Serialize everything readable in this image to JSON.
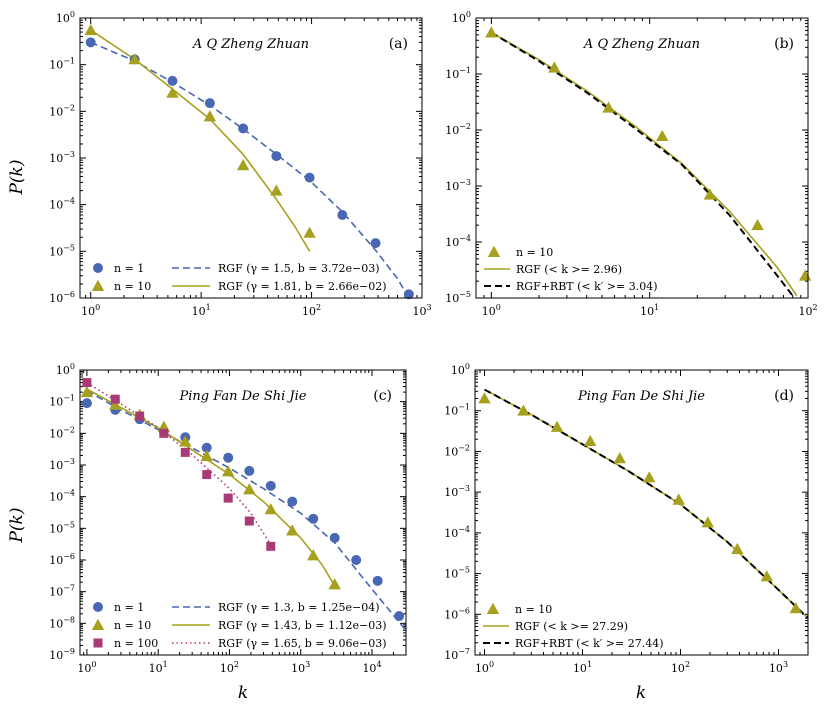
{
  "colors": {
    "blue": "#4a67b3",
    "olive": "#a6a01e",
    "magenta": "#a93a75"
  },
  "axis_labels": {
    "y": "P(k)",
    "x": "k"
  },
  "chart_data": [
    {
      "type": "scatter",
      "scale": "log-log",
      "label": "(a)",
      "title": "A Q Zheng Zhuan",
      "xlim": [
        0.8,
        1000
      ],
      "ylim": [
        1e-06,
        1
      ],
      "legend_layout": "two-columns",
      "xticks": [
        0,
        1,
        2,
        3
      ],
      "yticks": [
        0,
        -1,
        -2,
        -3,
        -4,
        -5,
        -6
      ],
      "series": [
        {
          "name": "n = 1",
          "marker": "circle",
          "color": "#4a67b3",
          "x": [
            1,
            2.5,
            5.5,
            12,
            24,
            48,
            96,
            190,
            380,
            760
          ],
          "y": [
            0.3,
            0.13,
            0.045,
            0.015,
            0.0043,
            0.0011,
            0.00038,
            6e-05,
            1.5e-05,
            1.2e-06
          ]
        },
        {
          "name": "n = 10",
          "marker": "triangle",
          "color": "#a6a01e",
          "x": [
            1,
            2.5,
            5.5,
            12,
            24,
            48,
            96
          ],
          "y": [
            0.55,
            0.13,
            0.025,
            0.0078,
            0.0007,
            0.0002,
            2.5e-05
          ]
        }
      ],
      "fits": [
        {
          "name": "RGF",
          "params": "(γ = 1.5, b = 3.72e−03)",
          "color": "#4a67b3",
          "style": "dashed",
          "x": [
            1,
            2.5,
            5.5,
            12,
            24,
            48,
            96,
            190,
            380,
            600,
            800
          ],
          "y": [
            0.3,
            0.12,
            0.042,
            0.0135,
            0.0042,
            0.0012,
            0.00033,
            7e-05,
            1.05e-05,
            2.6e-06,
            8e-07
          ]
        },
        {
          "name": "RGF",
          "params": "(γ = 1.81, b = 2.66e−02)",
          "color": "#a6a01e",
          "style": "solid",
          "x": [
            1,
            2.5,
            5.5,
            12,
            24,
            48,
            70,
            96
          ],
          "y": [
            0.55,
            0.13,
            0.03,
            0.0068,
            0.0012,
            0.00013,
            3.5e-05,
            1e-05
          ]
        }
      ]
    },
    {
      "type": "scatter",
      "scale": "log-log",
      "label": "(b)",
      "title": "A Q Zheng Zhuan",
      "xlim": [
        0.8,
        100
      ],
      "ylim": [
        1e-05,
        1
      ],
      "legend_layout": "one-column",
      "xticks": [
        0,
        1,
        2
      ],
      "yticks": [
        0,
        -1,
        -2,
        -3,
        -4,
        -5
      ],
      "series": [
        {
          "name": "n = 10",
          "marker": "triangle",
          "color": "#a6a01e",
          "x": [
            1,
            2.5,
            5.5,
            12,
            24,
            48,
            96
          ],
          "y": [
            0.55,
            0.13,
            0.025,
            0.0078,
            0.0007,
            0.0002,
            2.5e-05
          ]
        }
      ],
      "fits": [
        {
          "name": "RGF",
          "params": "(< k >= 2.96)",
          "color": "#a6a01e",
          "style": "solid",
          "x": [
            1,
            2,
            4,
            8,
            16,
            32,
            64,
            85
          ],
          "y": [
            0.55,
            0.18,
            0.05,
            0.012,
            0.0025,
            0.00035,
            3.5e-05,
            1.1e-05
          ]
        },
        {
          "name": "RGF+RBT",
          "params": "(< k′ >= 3.04)",
          "color": "#000000",
          "style": "dashed",
          "x": [
            1,
            2,
            4,
            8,
            16,
            32,
            64,
            80
          ],
          "y": [
            0.55,
            0.17,
            0.047,
            0.011,
            0.0024,
            0.0003,
            2.5e-05,
            1.1e-05
          ]
        }
      ]
    },
    {
      "type": "scatter",
      "scale": "log-log",
      "label": "(c)",
      "title": "Ping Fan De Shi Jie",
      "xlim": [
        0.8,
        30000
      ],
      "ylim": [
        1e-09,
        1
      ],
      "legend_layout": "two-columns",
      "xticks": [
        0,
        1,
        2,
        3,
        4
      ],
      "yticks": [
        0,
        -1,
        -2,
        -3,
        -4,
        -5,
        -6,
        -7,
        -8,
        -9
      ],
      "series": [
        {
          "name": "n = 1",
          "marker": "circle",
          "color": "#4a67b3",
          "x": [
            1,
            2.5,
            5.5,
            12,
            24,
            48,
            96,
            190,
            380,
            760,
            1500,
            3000,
            6000,
            12000,
            24000
          ],
          "y": [
            0.09,
            0.055,
            0.028,
            0.012,
            0.0075,
            0.0035,
            0.0017,
            0.00065,
            0.00022,
            7e-05,
            2e-05,
            5e-06,
            1e-06,
            2.2e-07,
            1.7e-08
          ]
        },
        {
          "name": "n = 10",
          "marker": "triangle",
          "color": "#a6a01e",
          "x": [
            1,
            2.5,
            5.5,
            12,
            24,
            48,
            96,
            190,
            380,
            760,
            1500,
            3000
          ],
          "y": [
            0.2,
            0.08,
            0.038,
            0.016,
            0.0055,
            0.0019,
            0.00063,
            0.00017,
            4e-05,
            8.5e-06,
            1.4e-06,
            1.7e-07
          ]
        },
        {
          "name": "n = 100",
          "marker": "square",
          "color": "#a93a75",
          "x": [
            1,
            2.5,
            5.5,
            12,
            24,
            48,
            96,
            190,
            380
          ],
          "y": [
            0.4,
            0.12,
            0.035,
            0.01,
            0.0025,
            0.0005,
            9e-05,
            1.7e-05,
            2.7e-06
          ]
        }
      ],
      "fits": [
        {
          "name": "RGF",
          "params": "(γ = 1.3, b = 1.25e−04)",
          "color": "#4a67b3",
          "style": "dashed",
          "x": [
            1,
            3,
            10,
            30,
            100,
            300,
            1000,
            3000,
            10000,
            30000
          ],
          "y": [
            0.22,
            0.055,
            0.013,
            0.0035,
            0.0008,
            0.00018,
            3e-05,
            3.5e-06,
            1.2e-07,
            6e-09
          ]
        },
        {
          "name": "RGF",
          "params": "(γ = 1.43, b = 1.12e−03)",
          "color": "#a6a01e",
          "style": "solid",
          "x": [
            1,
            3,
            10,
            30,
            100,
            300,
            1000,
            2000,
            3200
          ],
          "y": [
            0.25,
            0.065,
            0.015,
            0.003,
            0.0005,
            7e-05,
            5e-06,
            7e-07,
            1.2e-07
          ]
        },
        {
          "name": "RGF",
          "params": "(γ = 1.65, b = 9.06e−03)",
          "color": "#a93a75",
          "style": "dotted",
          "x": [
            1,
            3,
            10,
            30,
            100,
            200,
            400
          ],
          "y": [
            0.4,
            0.085,
            0.015,
            0.0021,
            0.00018,
            3e-05,
            2.5e-06
          ]
        }
      ]
    },
    {
      "type": "scatter",
      "scale": "log-log",
      "label": "(d)",
      "title": "Ping Fan De Shi Jie",
      "xlim": [
        0.8,
        2000
      ],
      "ylim": [
        1e-07,
        1
      ],
      "legend_layout": "one-column",
      "xticks": [
        0,
        1,
        2,
        3
      ],
      "yticks": [
        0,
        -1,
        -2,
        -3,
        -4,
        -5,
        -6,
        -7
      ],
      "series": [
        {
          "name": "n = 10",
          "marker": "triangle",
          "color": "#a6a01e",
          "x": [
            1,
            2.5,
            5.5,
            12,
            24,
            48,
            96,
            190,
            380,
            760,
            1500
          ],
          "y": [
            0.2,
            0.1,
            0.04,
            0.018,
            0.0068,
            0.0023,
            0.00065,
            0.00018,
            4e-05,
            8.5e-06,
            1.4e-06
          ]
        }
      ],
      "fits": [
        {
          "name": "RGF",
          "params": "(< k >= 27.29)",
          "color": "#a6a01e",
          "style": "solid",
          "x": [
            1,
            3,
            10,
            30,
            100,
            300,
            1000,
            2000
          ],
          "y": [
            0.33,
            0.08,
            0.015,
            0.0032,
            0.0005,
            6e-05,
            4e-06,
            8e-07
          ]
        },
        {
          "name": "RGF+RBT",
          "params": "(< k′ >= 27.44)",
          "color": "#000000",
          "style": "dashed",
          "x": [
            1,
            3,
            10,
            30,
            100,
            300,
            1000,
            2000
          ],
          "y": [
            0.33,
            0.08,
            0.015,
            0.0032,
            0.0005,
            6e-05,
            4e-06,
            8e-07
          ]
        }
      ]
    }
  ]
}
